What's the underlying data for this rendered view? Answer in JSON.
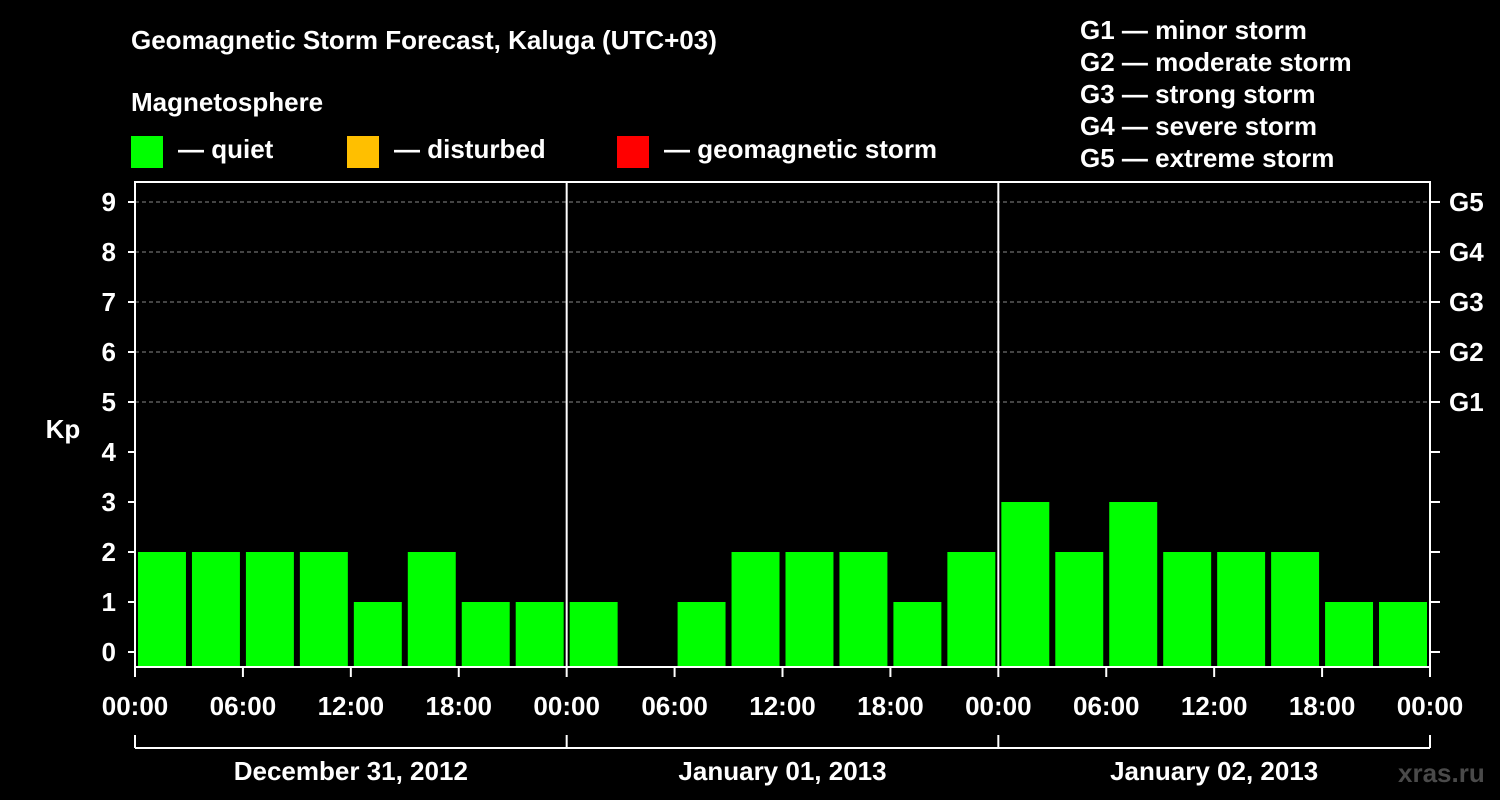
{
  "title": "Geomagnetic Storm Forecast, Kaluga (UTC+03)",
  "magnetosphere_label": "Magnetosphere",
  "legend": [
    {
      "label": "— quiet",
      "color": "#00ff00"
    },
    {
      "label": "— disturbed",
      "color": "#ffbf00"
    },
    {
      "label": "— geomagnetic storm",
      "color": "#ff0000"
    }
  ],
  "storm_scale": [
    "G1 — minor storm",
    "G2 — moderate storm",
    "G3 — strong storm",
    "G4 — severe storm",
    "G5 — extreme storm"
  ],
  "watermark": "xras.ru",
  "chart_data": {
    "type": "bar",
    "ylabel": "Kp",
    "ylim": [
      0,
      9
    ],
    "y_ticks": [
      "0",
      "1",
      "2",
      "3",
      "4",
      "5",
      "6",
      "7",
      "8",
      "9"
    ],
    "right_axis_labels": [
      {
        "kp": 5,
        "label": "G1"
      },
      {
        "kp": 6,
        "label": "G2"
      },
      {
        "kp": 7,
        "label": "G3"
      },
      {
        "kp": 8,
        "label": "G4"
      },
      {
        "kp": 9,
        "label": "G5"
      }
    ],
    "grid": "dashed horizontal at Kp 5-9",
    "x_tick_labels": [
      "00:00",
      "06:00",
      "12:00",
      "18:00",
      "00:00",
      "06:00",
      "12:00",
      "18:00",
      "00:00",
      "06:00",
      "12:00",
      "18:00",
      "00:00"
    ],
    "days": [
      "December 31, 2012",
      "January 01, 2013",
      "January 02, 2013"
    ],
    "interval_hours": 3,
    "series": [
      {
        "values": [
          2,
          2,
          2,
          2,
          1,
          2,
          1,
          1,
          1,
          0,
          1,
          2,
          2,
          2,
          1,
          2,
          3,
          2,
          3,
          2,
          2,
          2,
          1,
          1
        ]
      }
    ],
    "colors": {
      "quiet": "#00ff00",
      "disturbed": "#ffbf00",
      "storm": "#ff0000"
    }
  }
}
